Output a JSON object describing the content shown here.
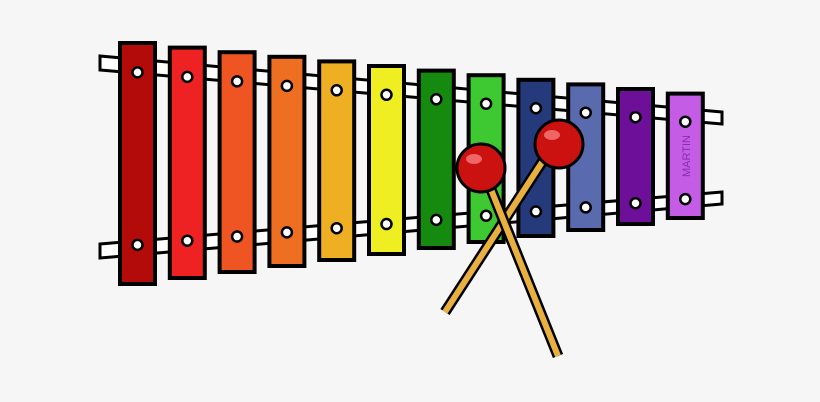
{
  "signature": "MARTIN"
}
